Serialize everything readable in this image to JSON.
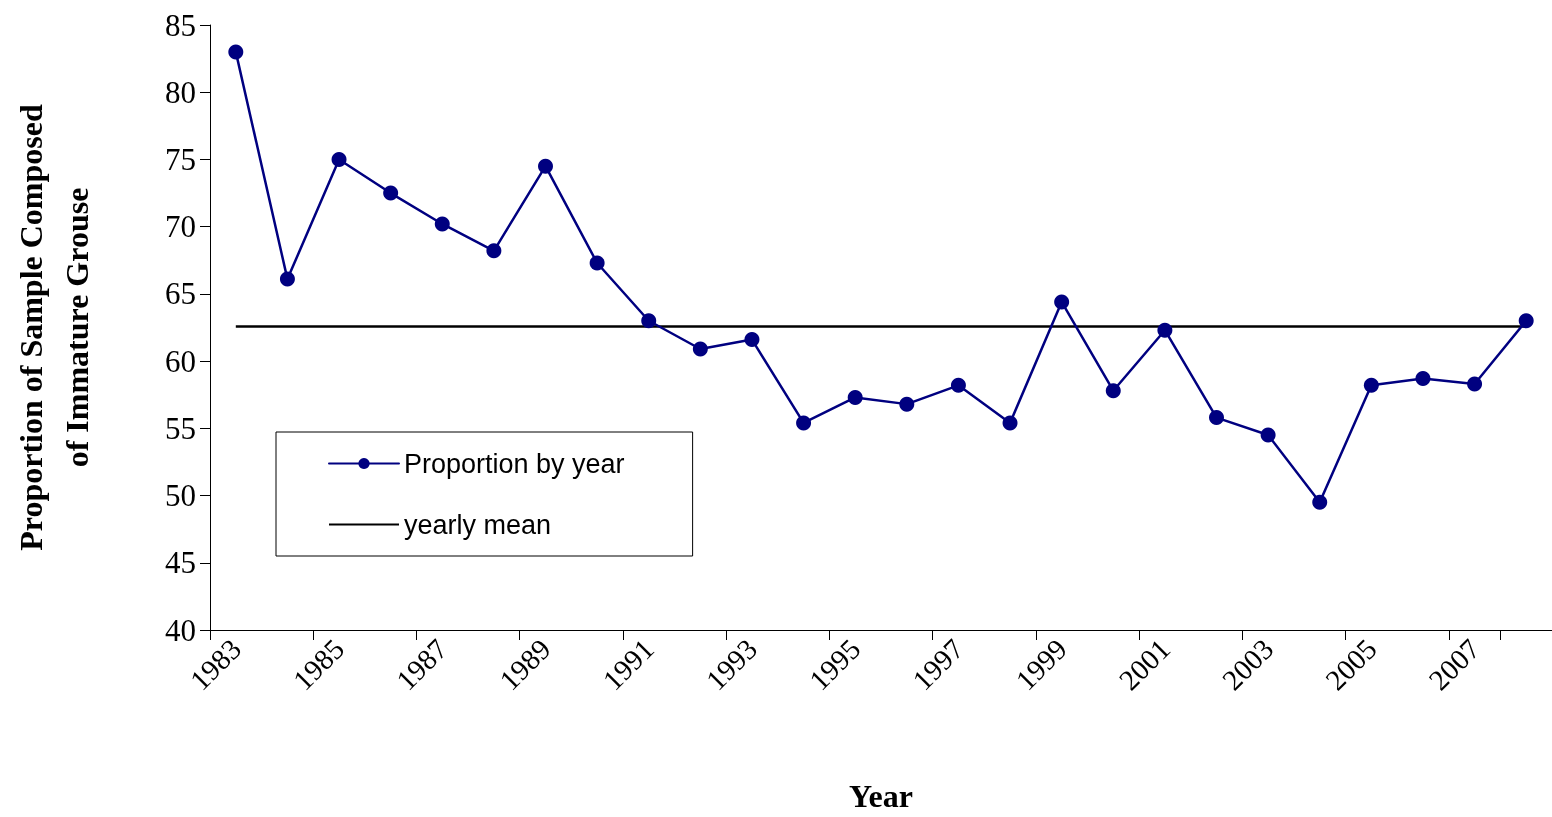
{
  "chart_data": {
    "type": "line",
    "xlabel": "Year",
    "ylabel": "Proportion of Sample Composed\nof Immature Grouse",
    "categories": [
      "1983",
      null,
      "1985",
      null,
      "1987",
      null,
      "1989",
      null,
      "1991",
      null,
      "1993",
      null,
      "1995",
      null,
      "1997",
      null,
      "1999",
      null,
      "2001",
      null,
      "2003",
      null,
      "2005",
      null,
      "2007",
      null
    ],
    "series": [
      {
        "name": "Proportion by year",
        "color": "#000080",
        "values": [
          83.0,
          66.1,
          75.0,
          72.5,
          70.2,
          68.2,
          74.5,
          67.3,
          63.0,
          60.9,
          61.6,
          55.4,
          57.3,
          56.8,
          58.2,
          55.4,
          64.4,
          57.8,
          62.3,
          55.8,
          54.5,
          49.5,
          58.2,
          58.7,
          58.3,
          63.0
        ]
      }
    ],
    "ylim": [
      40,
      85
    ],
    "yticks": [
      40,
      45,
      50,
      55,
      60,
      65,
      70,
      75,
      80,
      85
    ],
    "ref_lines": [
      {
        "axis": "y",
        "value": 62.6,
        "label": "yearly mean",
        "color": "#000000",
        "line_style": "solid"
      }
    ],
    "marker": "circle",
    "line_style": "solid",
    "grid": false,
    "legend": "bottom left"
  }
}
